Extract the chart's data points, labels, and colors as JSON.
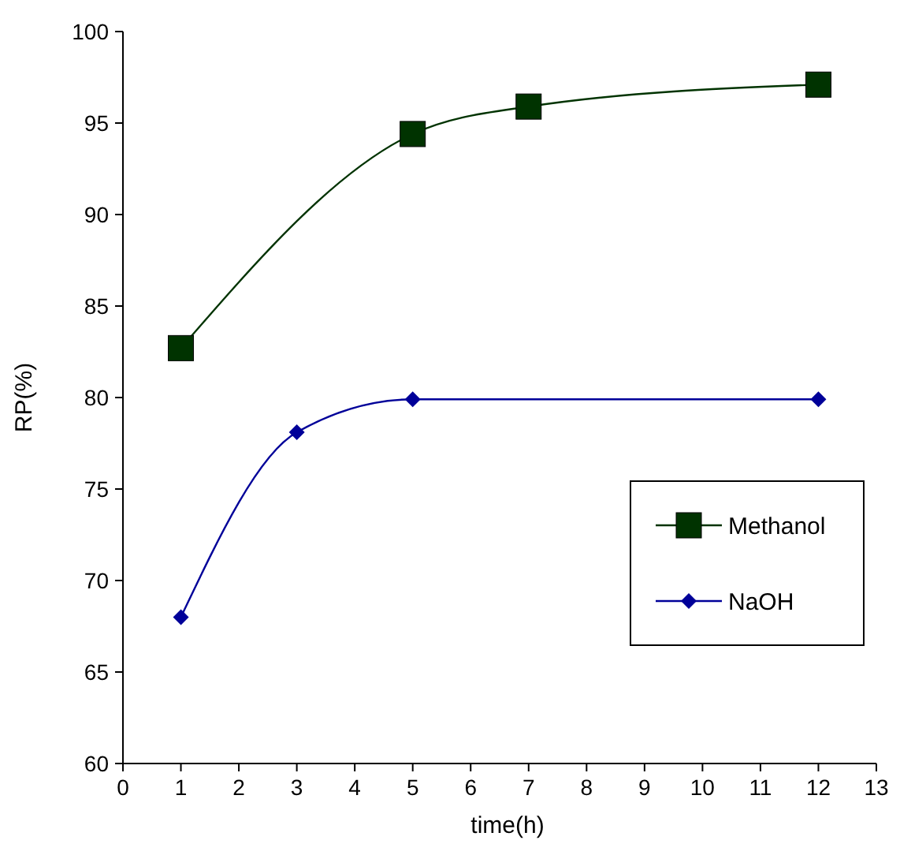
{
  "chart_data": {
    "type": "line",
    "xlabel": "time(h)",
    "ylabel": "RP(%)",
    "xlim": [
      0,
      13
    ],
    "xticks": [
      0,
      1,
      2,
      3,
      4,
      5,
      6,
      7,
      8,
      9,
      10,
      11,
      12,
      13
    ],
    "ylim": [
      60,
      100
    ],
    "yticks": [
      60,
      65,
      70,
      75,
      80,
      85,
      90,
      95,
      100
    ],
    "grid": false,
    "legend": "bottom right",
    "series": [
      {
        "name": "Methanol",
        "color": "#003300",
        "marker": "square",
        "x": [
          1,
          5,
          7,
          12
        ],
        "values": [
          82.7,
          94.4,
          95.9,
          97.1
        ]
      },
      {
        "name": "NaOH",
        "color": "#000099",
        "marker": "diamond",
        "x": [
          1,
          3,
          5,
          12
        ],
        "values": [
          68.0,
          78.1,
          79.9,
          79.9
        ]
      }
    ]
  }
}
